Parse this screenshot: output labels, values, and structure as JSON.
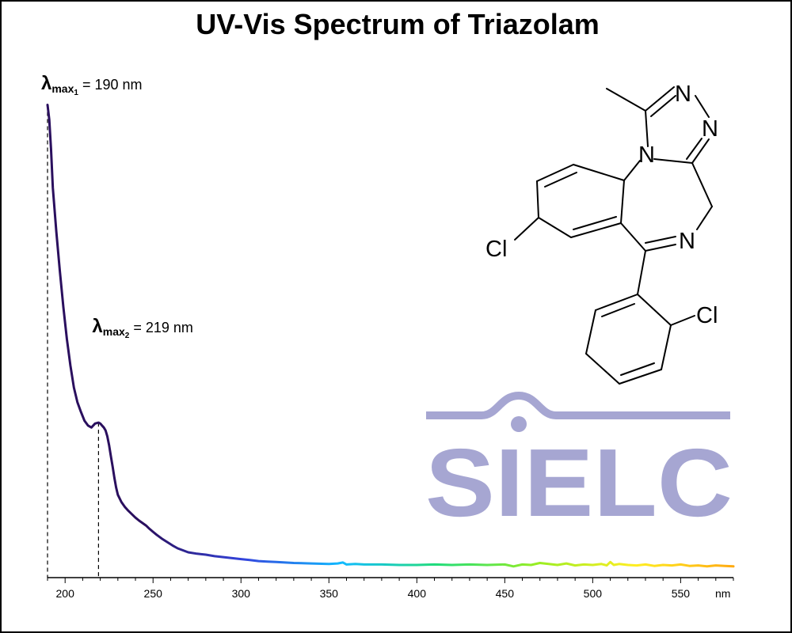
{
  "chart_data": {
    "type": "line",
    "title": "UV-Vis Spectrum of Triazolam",
    "xlabel": "nm",
    "ylabel": "",
    "xlim": [
      190,
      580
    ],
    "ylim": [
      0,
      1
    ],
    "x_ticks": [
      200,
      250,
      300,
      350,
      400,
      450,
      500,
      550
    ],
    "grid": false,
    "legend": "none",
    "series": [
      {
        "x": [
          190,
          191,
          192,
          193,
          195,
          197,
          199,
          201,
          203,
          205,
          207,
          209,
          211,
          213,
          215,
          216,
          217,
          218,
          219,
          220,
          221,
          222,
          223,
          224,
          225,
          226,
          227,
          228,
          229,
          230,
          232,
          234,
          236,
          238,
          240,
          242,
          244,
          246,
          248,
          250,
          252,
          255,
          258,
          261,
          264,
          267,
          270,
          275,
          280,
          285,
          290,
          295,
          300,
          305,
          310,
          315,
          320,
          325,
          330,
          340,
          350,
          355,
          358,
          360,
          365,
          370,
          380,
          390,
          400,
          410,
          420,
          430,
          440,
          450,
          455,
          460,
          465,
          470,
          475,
          480,
          485,
          490,
          495,
          500,
          505,
          508,
          510,
          512,
          515,
          520,
          525,
          530,
          535,
          540,
          545,
          550,
          555,
          560,
          565,
          570,
          575,
          580
        ],
        "y": [
          0.97,
          0.94,
          0.88,
          0.8,
          0.71,
          0.63,
          0.555,
          0.49,
          0.435,
          0.39,
          0.36,
          0.34,
          0.322,
          0.312,
          0.308,
          0.312,
          0.316,
          0.317,
          0.318,
          0.316,
          0.312,
          0.308,
          0.302,
          0.29,
          0.272,
          0.25,
          0.228,
          0.205,
          0.185,
          0.17,
          0.155,
          0.145,
          0.137,
          0.13,
          0.123,
          0.117,
          0.112,
          0.107,
          0.1,
          0.094,
          0.088,
          0.08,
          0.073,
          0.066,
          0.06,
          0.056,
          0.052,
          0.049,
          0.047,
          0.044,
          0.042,
          0.04,
          0.038,
          0.036,
          0.034,
          0.033,
          0.032,
          0.031,
          0.03,
          0.029,
          0.028,
          0.029,
          0.031,
          0.027,
          0.028,
          0.027,
          0.027,
          0.026,
          0.026,
          0.027,
          0.026,
          0.027,
          0.026,
          0.027,
          0.023,
          0.027,
          0.026,
          0.03,
          0.028,
          0.026,
          0.029,
          0.025,
          0.027,
          0.026,
          0.028,
          0.025,
          0.032,
          0.026,
          0.028,
          0.026,
          0.025,
          0.027,
          0.024,
          0.026,
          0.025,
          0.027,
          0.024,
          0.025,
          0.023,
          0.025,
          0.024,
          0.023
        ]
      }
    ],
    "color_gradient": [
      "#2a0f5e",
      "#2a0f5e",
      "#3344dd",
      "#11bbff",
      "#22dd77",
      "#99ee22",
      "#ffee22",
      "#ffaa11"
    ],
    "annotations": [
      {
        "label": "λ",
        "sub": "max",
        "subsub": "1",
        "text": "= 190 nm",
        "x": 190
      },
      {
        "label": "λ",
        "sub": "max",
        "subsub": "2",
        "text": "= 219 nm",
        "x": 219
      }
    ]
  },
  "molecule": {
    "atom_labels": [
      "N",
      "N",
      "N",
      "N",
      "Cl",
      "Cl"
    ]
  },
  "logo": {
    "text": "SIELC",
    "color": "#a6a6d2"
  }
}
